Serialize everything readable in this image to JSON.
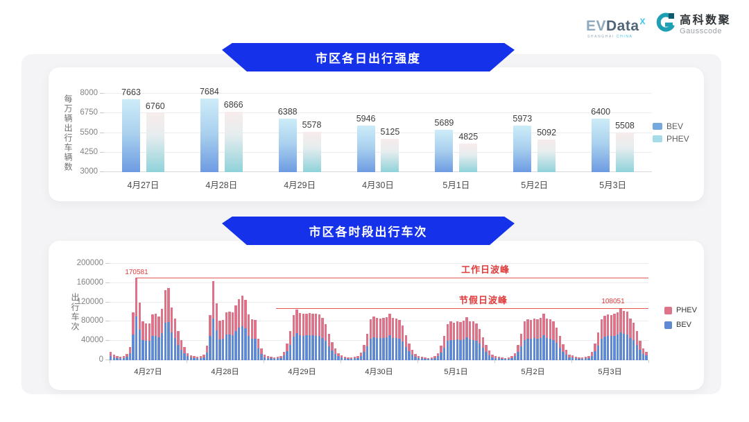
{
  "logo": {
    "evdata": {
      "part1": "EV",
      "part2": "Data",
      "sup": "X",
      "tagline_left": "SHANGHAI",
      "tagline_right": "CHINA"
    },
    "gausscode": {
      "name_cn": "高科数聚",
      "name_en": "Gausscode"
    }
  },
  "colors": {
    "banner_blue": "#1631ea",
    "bev_gradient_top": "#cdecf8",
    "bev_gradient_bottom": "#6d9be2",
    "phev_gradient_top": "#f8eceb",
    "phev_gradient_bottom": "#8fd2da",
    "bev_flat": "#6089d4",
    "phev_flat": "#dd7389",
    "annotation_red": "#e03a3a"
  },
  "chart_data": [
    {
      "type": "bar",
      "title": "市区各日出行强度",
      "ylabel": "每万辆出行车辆数",
      "ymin": 3000,
      "ymax": 8000,
      "yticks": [
        3000,
        4250,
        5500,
        6750,
        8000
      ],
      "grid": true,
      "legend": [
        "BEV",
        "PHEV"
      ],
      "legend_position": "right",
      "categories": [
        "4月27日",
        "4月28日",
        "4月29日",
        "4月30日",
        "5月1日",
        "5月2日",
        "5月3日"
      ],
      "series": [
        {
          "name": "BEV",
          "values": [
            7663,
            7684,
            6388,
            5946,
            5689,
            5973,
            6400
          ]
        },
        {
          "name": "PHEV",
          "values": [
            6760,
            6866,
            5578,
            5125,
            4825,
            5092,
            5508
          ]
        }
      ]
    },
    {
      "type": "bar",
      "subtype": "stacked-hourly",
      "title": "市区各时段出行车次",
      "ylabel": "出行车次",
      "ymin": 0,
      "ymax": 200000,
      "yticks": [
        0,
        40000,
        80000,
        120000,
        160000,
        200000
      ],
      "grid": true,
      "legend": [
        "PHEV",
        "BEV"
      ],
      "legend_position": "right",
      "hours_per_day": 24,
      "annotations": {
        "workday_peak": {
          "label": "工作日波峰",
          "value": 170581,
          "value_label": "170581"
        },
        "holiday_peak": {
          "label": "节假日波峰",
          "value": 108051,
          "value_label": "108051"
        }
      },
      "days": [
        {
          "date": "4月27日",
          "bev": [
            9000,
            6400,
            4800,
            3700,
            4200,
            6900,
            14300,
            53000,
            90400,
            63100,
            42400,
            40300,
            40800,
            50400,
            50900,
            47700,
            56700,
            77400,
            79500,
            57800,
            46100,
            31800,
            22300,
            14800
          ],
          "phev": [
            8000,
            5600,
            4200,
            3300,
            3800,
            6100,
            12700,
            47000,
            80181,
            55900,
            37600,
            35700,
            36200,
            44600,
            45100,
            42300,
            50300,
            68600,
            70500,
            51200,
            40900,
            28200,
            19700,
            13200
          ]
        },
        {
          "date": "4月28日",
          "bev": [
            8000,
            5300,
            4200,
            3700,
            4200,
            6400,
            15900,
            49800,
            86900,
            62500,
            43500,
            44500,
            53000,
            53500,
            52500,
            59900,
            67300,
            71000,
            66300,
            50400,
            45100,
            44500,
            23900,
            13300
          ],
          "phev": [
            7000,
            4700,
            3800,
            3300,
            3800,
            5600,
            14100,
            44200,
            77100,
            55500,
            38500,
            39500,
            47000,
            47500,
            46500,
            53100,
            59700,
            63000,
            58700,
            44600,
            39900,
            39500,
            21100,
            11700
          ]
        },
        {
          "date": "4月29日",
          "bev": [
            6400,
            4200,
            3700,
            3200,
            3700,
            4800,
            9500,
            18600,
            31800,
            49300,
            55700,
            51900,
            50900,
            51400,
            51900,
            51400,
            50900,
            50400,
            46600,
            39800,
            29200,
            20100,
            13300,
            8000
          ],
          "phev": [
            5600,
            3800,
            3300,
            2800,
            3300,
            4200,
            8500,
            16400,
            28200,
            43700,
            49300,
            46100,
            45100,
            45600,
            46100,
            45600,
            45100,
            44600,
            41400,
            35200,
            25800,
            17900,
            11700,
            7000
          ]
        },
        {
          "date": "4月30日",
          "bev": [
            5300,
            3700,
            3200,
            3200,
            3700,
            4800,
            8500,
            17000,
            29200,
            45100,
            48200,
            46600,
            46100,
            46600,
            47200,
            51400,
            46600,
            46100,
            44500,
            38200,
            27600,
            18600,
            11700,
            6900
          ],
          "phev": [
            4700,
            3300,
            2800,
            2800,
            3300,
            4200,
            7500,
            15000,
            25800,
            39900,
            42800,
            41400,
            40900,
            41400,
            41800,
            45600,
            41400,
            40900,
            39500,
            33800,
            24400,
            16400,
            10300,
            6100
          ]
        },
        {
          "date": "5月1日",
          "bev": [
            4800,
            3700,
            3200,
            2700,
            3200,
            4200,
            8000,
            15900,
            26500,
            39800,
            42400,
            41300,
            42900,
            41900,
            43500,
            47200,
            42900,
            42400,
            40300,
            34500,
            25400,
            17000,
            10600,
            6400
          ],
          "phev": [
            4200,
            3300,
            2800,
            2300,
            2800,
            3800,
            7000,
            14100,
            23500,
            35200,
            37600,
            36700,
            38100,
            37100,
            38500,
            41800,
            38100,
            37600,
            35700,
            30500,
            22600,
            15000,
            9400,
            5600
          ]
        },
        {
          "date": "5月2日",
          "bev": [
            4800,
            3700,
            3200,
            2700,
            3200,
            4200,
            8000,
            17000,
            29200,
            42400,
            45100,
            44500,
            45600,
            45100,
            46600,
            51400,
            46100,
            45100,
            42400,
            36000,
            26500,
            17500,
            11100,
            6400
          ],
          "phev": [
            4200,
            3300,
            2800,
            2300,
            2800,
            3800,
            7000,
            15000,
            25800,
            37600,
            39900,
            39500,
            40400,
            39900,
            41400,
            45600,
            40900,
            39900,
            37600,
            32000,
            23500,
            15500,
            9900,
            5600
          ]
        },
        {
          "date": "5月3日",
          "bev": [
            5300,
            3700,
            3200,
            3200,
            3700,
            4800,
            9000,
            18600,
            30700,
            45100,
            48800,
            50400,
            49800,
            50900,
            53000,
            57300,
            54100,
            53500,
            45600,
            41300,
            31800,
            21200,
            13300,
            9500
          ],
          "phev": [
            4700,
            3300,
            2800,
            2800,
            3300,
            4200,
            8000,
            16400,
            27300,
            39900,
            43200,
            44600,
            44200,
            45100,
            47000,
            50751,
            47900,
            47500,
            40400,
            36700,
            28200,
            18800,
            11700,
            8500
          ]
        }
      ]
    }
  ]
}
